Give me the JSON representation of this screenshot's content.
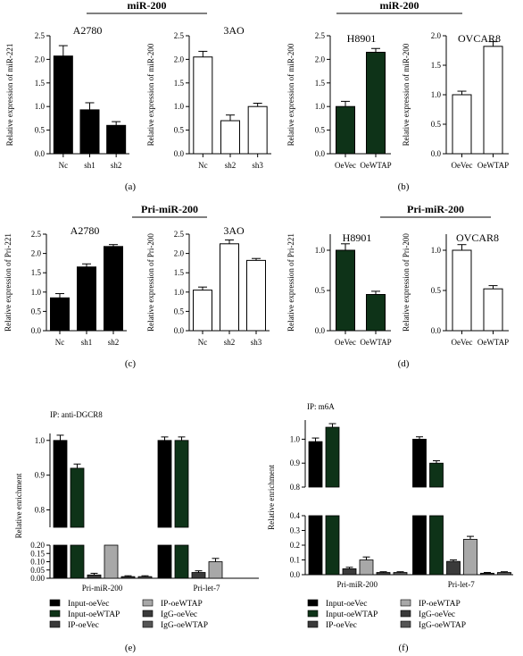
{
  "panel_labels": [
    "(a)",
    "(b)",
    "(c)",
    "(d)",
    "(e)",
    "(f)"
  ],
  "colors": {
    "black": "#000000",
    "dark_green": "#0e3318",
    "white": "#ffffff",
    "dark_gray": "#3a3a3a",
    "light_gray": "#a8a8a8",
    "mid_gray": "#555555"
  },
  "group_labels": [
    {
      "id": "a",
      "text": "miR-200"
    },
    {
      "id": "b",
      "text": "miR-200"
    },
    {
      "id": "c",
      "text": "Pri-miR-200"
    },
    {
      "id": "d",
      "text": "Pri-miR-200"
    }
  ],
  "chart_data": [
    {
      "id": "a1",
      "type": "bar",
      "title": "A2780",
      "ylabel": "Relative expression of miR-221",
      "categories": [
        "Nc",
        "sh1",
        "sh2"
      ],
      "values": [
        2.07,
        0.93,
        0.6
      ],
      "errors": [
        0.22,
        0.15,
        0.08
      ],
      "ylim": [
        0,
        2.5
      ],
      "yticks": [
        "0.0",
        "0.5",
        "1.0",
        "1.5",
        "2.0",
        "2.5"
      ],
      "fill": "#000000"
    },
    {
      "id": "a2",
      "type": "bar",
      "title": "3AO",
      "ylabel": "Relative expression of miR-200",
      "categories": [
        "Nc",
        "sh2",
        "sh3"
      ],
      "values": [
        2.05,
        0.7,
        1.0
      ],
      "errors": [
        0.12,
        0.12,
        0.07
      ],
      "ylim": [
        0,
        2.5
      ],
      "yticks": [
        "0.0",
        "0.5",
        "1.0",
        "1.5",
        "2.0",
        "2.5"
      ],
      "fill": "#ffffff"
    },
    {
      "id": "b1",
      "type": "bar",
      "title": "H8901",
      "ylabel": "Relative expression of miR-200",
      "categories": [
        "OeVec",
        "OeWTAP"
      ],
      "values": [
        1.0,
        2.15
      ],
      "errors": [
        0.11,
        0.08
      ],
      "ylim": [
        0,
        2.5
      ],
      "yticks": [
        "0.0",
        "0.5",
        "1.0",
        "1.5",
        "2.0",
        "2.5"
      ],
      "fill": "#0e3318"
    },
    {
      "id": "b2",
      "type": "bar",
      "title": "OVCAR8",
      "ylabel": "Relative expression of miR-200",
      "categories": [
        "OeVec",
        "OeWTAP"
      ],
      "values": [
        1.0,
        1.82
      ],
      "errors": [
        0.06,
        0.08
      ],
      "ylim": [
        0,
        2.0
      ],
      "yticks": [
        "0.0",
        "0.5",
        "1.0",
        "1.5",
        "2.0"
      ],
      "fill": "#ffffff"
    },
    {
      "id": "c1",
      "type": "bar",
      "title": "A2780",
      "ylabel": "Relative expression of Pri-221",
      "categories": [
        "Nc",
        "sh1",
        "sh2"
      ],
      "values": [
        0.85,
        1.65,
        2.18
      ],
      "errors": [
        0.11,
        0.08,
        0.05
      ],
      "ylim": [
        0,
        2.5
      ],
      "yticks": [
        "0.0",
        "0.5",
        "1.0",
        "1.5",
        "2.0",
        "2.5"
      ],
      "fill": "#000000"
    },
    {
      "id": "c2",
      "type": "bar",
      "title": "3AO",
      "ylabel": "Relative expression of Pri-200",
      "categories": [
        "Nc",
        "sh2",
        "sh3"
      ],
      "values": [
        1.05,
        2.25,
        1.82
      ],
      "errors": [
        0.08,
        0.1,
        0.05
      ],
      "ylim": [
        0,
        2.5
      ],
      "yticks": [
        "0.0",
        "0.5",
        "1.0",
        "1.5",
        "2.0",
        "2.5"
      ],
      "fill": "#ffffff"
    },
    {
      "id": "d1",
      "type": "bar",
      "title": "H8901",
      "ylabel": "Relative expression of Pri-221",
      "categories": [
        "OeVec",
        "OeWTAP"
      ],
      "values": [
        1.0,
        0.45
      ],
      "errors": [
        0.08,
        0.04
      ],
      "ylim": [
        0,
        1.2
      ],
      "yticks": [
        "0.0",
        "0.5",
        "1.0"
      ],
      "fill": "#0e3318"
    },
    {
      "id": "d2",
      "type": "bar",
      "title": "OVCAR8",
      "ylabel": "Relative expression of Pri-200",
      "categories": [
        "OeVec",
        "OeWTAP"
      ],
      "values": [
        1.0,
        0.52
      ],
      "errors": [
        0.07,
        0.04
      ],
      "ylim": [
        0,
        1.2
      ],
      "yticks": [
        "0.0",
        "0.5",
        "1.0"
      ],
      "fill": "#ffffff"
    },
    {
      "id": "e",
      "type": "bar",
      "title": "IP: anti-DGCR8",
      "ylabel": "Relative enrichment",
      "categories": [
        "Pri-miR-200",
        "Pri-let-7"
      ],
      "series": [
        {
          "name": "Input-oeVec",
          "values": [
            1.0,
            1.0
          ],
          "errors": [
            0.015,
            0.01
          ],
          "color": "#000000"
        },
        {
          "name": "Input-oeWTAP",
          "values": [
            0.92,
            1.0
          ],
          "errors": [
            0.012,
            0.01
          ],
          "color": "#0e3318"
        },
        {
          "name": "IP-oeVec",
          "values": [
            0.02,
            0.035
          ],
          "errors": [
            0.01,
            0.01
          ],
          "color": "#3a3a3a"
        },
        {
          "name": "IP-oeWTAP",
          "values": [
            0.2,
            0.1
          ],
          "errors": [
            0.0,
            0.02
          ],
          "color": "#a8a8a8"
        },
        {
          "name": "IgG-oeVec",
          "values": [
            0.01,
            0.0
          ],
          "errors": [
            0.005,
            0.0
          ],
          "color": "#3a3a3a"
        },
        {
          "name": "IgG-oeWTAP",
          "values": [
            0.01,
            0.0
          ],
          "errors": [
            0.005,
            0.0
          ],
          "color": "#555555"
        }
      ],
      "axis_break": {
        "lower": [
          0,
          0.2
        ],
        "upper": [
          0.75,
          1.02
        ]
      },
      "yticks_lower": [
        "0.00",
        "0.05",
        "0.10",
        "0.15",
        "0.20"
      ],
      "yticks_upper": [
        "0.8",
        "0.9",
        "1.0"
      ]
    },
    {
      "id": "f",
      "type": "bar",
      "title": "IP: m6A",
      "ylabel": "Relative enrichment",
      "categories": [
        "Pri-miR-200",
        "Pri-let-7"
      ],
      "series": [
        {
          "name": "Input-oeVec",
          "values": [
            0.99,
            1.0
          ],
          "errors": [
            0.015,
            0.01
          ],
          "color": "#000000"
        },
        {
          "name": "Input-oeWTAP",
          "values": [
            1.05,
            0.9
          ],
          "errors": [
            0.015,
            0.01
          ],
          "color": "#0e3318"
        },
        {
          "name": "IP-oeVec",
          "values": [
            0.04,
            0.09
          ],
          "errors": [
            0.01,
            0.01
          ],
          "color": "#3a3a3a"
        },
        {
          "name": "IP-oeWTAP",
          "values": [
            0.1,
            0.24
          ],
          "errors": [
            0.02,
            0.02
          ],
          "color": "#a8a8a8"
        },
        {
          "name": "IgG-oeVec",
          "values": [
            0.015,
            0.01
          ],
          "errors": [
            0.005,
            0.005
          ],
          "color": "#3a3a3a"
        },
        {
          "name": "IgG-oeWTAP",
          "values": [
            0.015,
            0.015
          ],
          "errors": [
            0.005,
            0.005
          ],
          "color": "#555555"
        }
      ],
      "axis_break": {
        "lower": [
          0,
          0.4
        ],
        "upper": [
          0.8,
          1.08
        ]
      },
      "yticks_lower": [
        "0.0",
        "0.1",
        "0.2",
        "0.3",
        "0.4"
      ],
      "yticks_upper": [
        "0.8",
        "0.9",
        "1.0"
      ]
    }
  ]
}
